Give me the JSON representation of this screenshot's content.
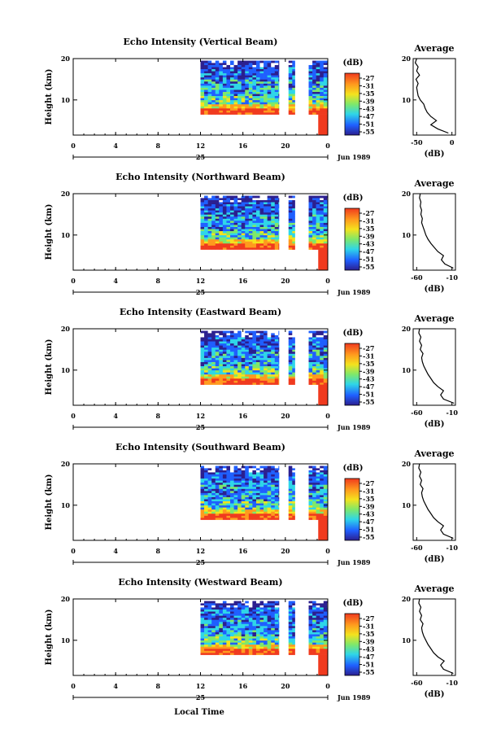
{
  "figure": {
    "xlabel": "Local Time",
    "date_label": "Jun 1989",
    "day_label": "25",
    "colorbar_unit": "(dB)",
    "colorbar_ticks": [
      "-27",
      "-31",
      "-35",
      "-39",
      "-43",
      "-47",
      "-51",
      "-55"
    ],
    "colors": {
      "low": "#2b1f8f",
      "blue": "#1f5fff",
      "cyan": "#2fd6e8",
      "green": "#7fe86a",
      "yellow": "#f4e21e",
      "orange": "#ff9a1e",
      "red": "#f03a1e"
    }
  },
  "chart_data": [
    {
      "type": "heatmap",
      "title": "Echo Intensity (Vertical Beam)",
      "ylabel": "Height (km)",
      "x_ticks": [
        "0",
        "4",
        "8",
        "12",
        "16",
        "20",
        "0"
      ],
      "y_ticks": [
        "20",
        "10"
      ],
      "xlim": [
        0,
        24
      ],
      "ylim": [
        1.5,
        20
      ],
      "data_segments": [
        [
          12,
          19.4
        ],
        [
          20.3,
          20.9
        ],
        [
          22.2,
          24
        ]
      ],
      "average": {
        "title": "Average",
        "xlabel": "(dB)",
        "x_ticks": [
          "-50",
          "0"
        ],
        "y_ticks": [
          "20",
          "10"
        ],
        "xlim": [
          -55,
          5
        ],
        "height": [
          2,
          3,
          4,
          5,
          6,
          7,
          8,
          9,
          10,
          11,
          12,
          13,
          14,
          15,
          16,
          17,
          18,
          19,
          20
        ],
        "db": [
          -5,
          -20,
          -30,
          -22,
          -30,
          -35,
          -38,
          -40,
          -45,
          -48,
          -49,
          -50,
          -48,
          -51,
          -46,
          -50,
          -48,
          -52,
          -50
        ]
      }
    },
    {
      "type": "heatmap",
      "title": "Echo Intensity (Northward Beam)",
      "ylabel": "Height (km)",
      "x_ticks": [
        "0",
        "4",
        "8",
        "12",
        "16",
        "20",
        "0"
      ],
      "y_ticks": [
        "20",
        "10"
      ],
      "xlim": [
        0,
        24
      ],
      "ylim": [
        1.5,
        20
      ],
      "data_segments": [
        [
          12,
          19.4
        ],
        [
          20.3,
          20.9
        ],
        [
          22.2,
          24
        ]
      ],
      "average": {
        "title": "Average",
        "xlabel": "(dB)",
        "x_ticks": [
          "-60",
          "-10"
        ],
        "y_ticks": [
          "20",
          "10"
        ],
        "xlim": [
          -65,
          -5
        ],
        "height": [
          2,
          3,
          4,
          5,
          6,
          7,
          8,
          9,
          10,
          11,
          12,
          13,
          14,
          15,
          16,
          17,
          18,
          19,
          20
        ],
        "db": [
          -8,
          -20,
          -25,
          -22,
          -30,
          -35,
          -40,
          -44,
          -47,
          -49,
          -51,
          -53,
          -52,
          -54,
          -53,
          -55,
          -54,
          -56,
          -55
        ]
      }
    },
    {
      "type": "heatmap",
      "title": "Echo Intensity (Eastward Beam)",
      "ylabel": "Height (km)",
      "x_ticks": [
        "0",
        "4",
        "8",
        "12",
        "16",
        "20",
        "0"
      ],
      "y_ticks": [
        "20",
        "10"
      ],
      "xlim": [
        0,
        24
      ],
      "ylim": [
        1.5,
        20
      ],
      "data_segments": [
        [
          12,
          19.4
        ],
        [
          20.3,
          20.9
        ],
        [
          22.2,
          24
        ]
      ],
      "average": {
        "title": "Average",
        "xlabel": "(dB)",
        "x_ticks": [
          "-60",
          "-10"
        ],
        "y_ticks": [
          "20",
          "10"
        ],
        "xlim": [
          -65,
          -5
        ],
        "height": [
          2,
          3,
          4,
          5,
          6,
          7,
          8,
          9,
          10,
          11,
          12,
          13,
          14,
          15,
          16,
          17,
          18,
          19,
          20
        ],
        "db": [
          -7,
          -22,
          -26,
          -22,
          -30,
          -36,
          -40,
          -44,
          -47,
          -50,
          -52,
          -53,
          -51,
          -55,
          -53,
          -56,
          -54,
          -57,
          -56
        ]
      }
    },
    {
      "type": "heatmap",
      "title": "Echo Intensity (Southward Beam)",
      "ylabel": "Height (km)",
      "x_ticks": [
        "0",
        "4",
        "8",
        "12",
        "16",
        "20",
        "0"
      ],
      "y_ticks": [
        "20",
        "10"
      ],
      "xlim": [
        0,
        24
      ],
      "ylim": [
        1.5,
        20
      ],
      "data_segments": [
        [
          12,
          19.4
        ],
        [
          20.3,
          20.9
        ],
        [
          22.2,
          24
        ]
      ],
      "average": {
        "title": "Average",
        "xlabel": "(dB)",
        "x_ticks": [
          "-60",
          "-10"
        ],
        "y_ticks": [
          "20",
          "10"
        ],
        "xlim": [
          -65,
          -5
        ],
        "height": [
          2,
          3,
          4,
          5,
          6,
          7,
          8,
          9,
          10,
          11,
          12,
          13,
          14,
          15,
          16,
          17,
          18,
          19,
          20
        ],
        "db": [
          -8,
          -22,
          -26,
          -22,
          -30,
          -36,
          -40,
          -44,
          -47,
          -50,
          -52,
          -53,
          -51,
          -55,
          -53,
          -56,
          -54,
          -57,
          -56
        ]
      }
    },
    {
      "type": "heatmap",
      "title": "Echo Intensity (Westward Beam)",
      "ylabel": "Height (km)",
      "x_ticks": [
        "0",
        "4",
        "8",
        "12",
        "16",
        "20",
        "0"
      ],
      "y_ticks": [
        "20",
        "10"
      ],
      "xlim": [
        0,
        24
      ],
      "ylim": [
        1.5,
        20
      ],
      "data_segments": [
        [
          12,
          19.4
        ],
        [
          20.3,
          20.9
        ],
        [
          22.2,
          24
        ]
      ],
      "average": {
        "title": "Average",
        "xlabel": "(dB)",
        "x_ticks": [
          "-60",
          "-10"
        ],
        "y_ticks": [
          "20",
          "10"
        ],
        "xlim": [
          -65,
          -5
        ],
        "height": [
          2,
          3,
          4,
          5,
          6,
          7,
          8,
          9,
          10,
          11,
          12,
          13,
          14,
          15,
          16,
          17,
          18,
          19,
          20
        ],
        "db": [
          -8,
          -22,
          -26,
          -21,
          -30,
          -36,
          -40,
          -44,
          -47,
          -50,
          -52,
          -53,
          -51,
          -55,
          -53,
          -56,
          -54,
          -57,
          -56
        ]
      }
    }
  ]
}
